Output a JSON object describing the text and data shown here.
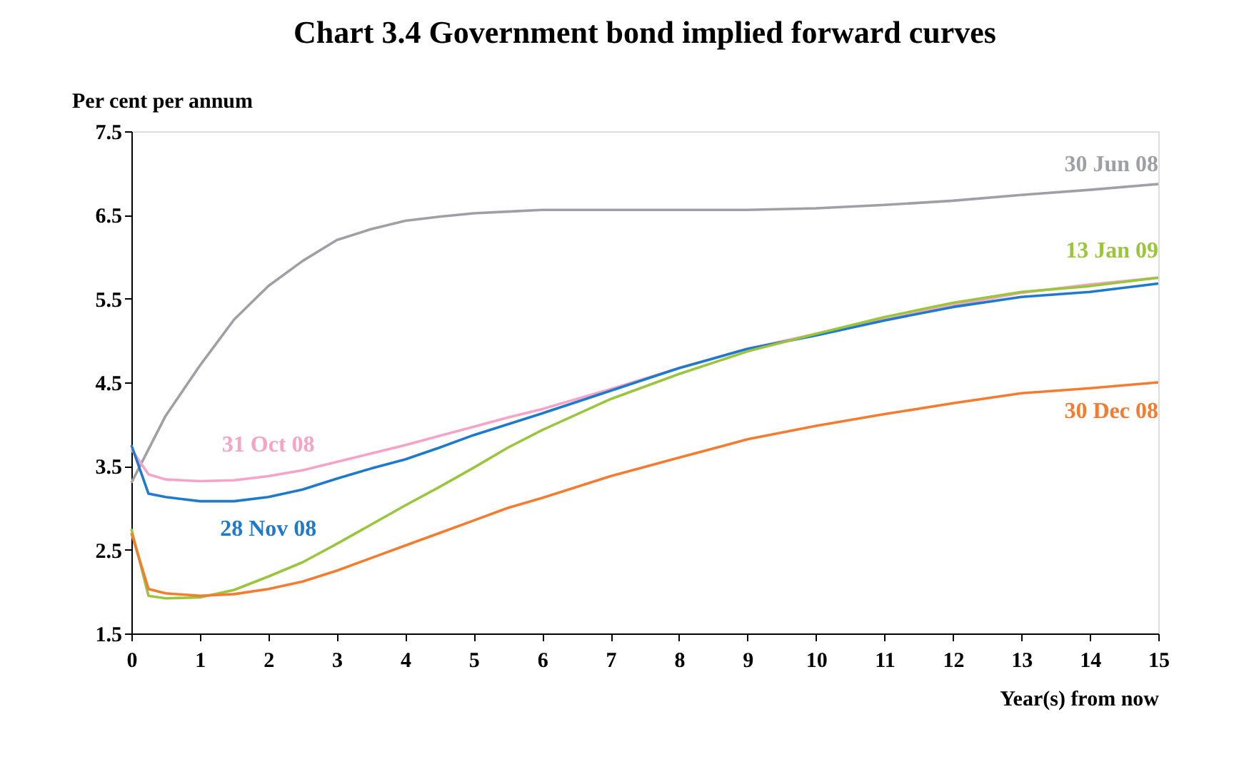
{
  "chart_data": {
    "type": "line",
    "title": "Chart 3.4  Government bond implied forward curves",
    "ylabel": "Per cent per annum",
    "xlabel": "Year(s) from now",
    "x": [
      0,
      0.25,
      0.5,
      1,
      1.5,
      2,
      2.5,
      3,
      3.5,
      4,
      4.5,
      5,
      5.5,
      6,
      7,
      8,
      9,
      10,
      11,
      12,
      13,
      14,
      15
    ],
    "series": [
      {
        "name": "30 Jun 08",
        "color": "#9ea0a6",
        "values": [
          3.3,
          3.7,
          4.1,
          4.7,
          5.25,
          5.65,
          5.95,
          6.2,
          6.33,
          6.43,
          6.48,
          6.52,
          6.54,
          6.56,
          6.56,
          6.56,
          6.56,
          6.58,
          6.62,
          6.67,
          6.74,
          6.8,
          6.87
        ]
      },
      {
        "name": "31 Oct 08",
        "color": "#f5a3c7",
        "values": [
          3.7,
          3.4,
          3.34,
          3.32,
          3.33,
          3.38,
          3.45,
          3.55,
          3.65,
          3.75,
          3.86,
          3.97,
          4.08,
          4.18,
          4.42,
          4.67,
          4.9,
          5.08,
          5.25,
          5.42,
          5.57,
          5.67,
          5.75
        ]
      },
      {
        "name": "28 Nov 08",
        "color": "#1f7acb",
        "values": [
          3.75,
          3.17,
          3.13,
          3.08,
          3.08,
          3.13,
          3.22,
          3.35,
          3.47,
          3.58,
          3.72,
          3.87,
          4.0,
          4.13,
          4.4,
          4.67,
          4.9,
          5.06,
          5.24,
          5.4,
          5.52,
          5.58,
          5.68
        ]
      },
      {
        "name": "13 Jan 09",
        "color": "#9bc53d",
        "values": [
          2.75,
          1.95,
          1.92,
          1.93,
          2.02,
          2.18,
          2.35,
          2.57,
          2.8,
          3.03,
          3.25,
          3.48,
          3.72,
          3.93,
          4.3,
          4.6,
          4.87,
          5.08,
          5.28,
          5.45,
          5.58,
          5.65,
          5.75
        ]
      },
      {
        "name": "30 Dec 08",
        "color": "#f47c30",
        "values": [
          2.7,
          2.03,
          1.98,
          1.95,
          1.97,
          2.03,
          2.12,
          2.25,
          2.4,
          2.55,
          2.7,
          2.85,
          3.0,
          3.12,
          3.38,
          3.6,
          3.82,
          3.98,
          4.12,
          4.25,
          4.37,
          4.43,
          4.5
        ]
      }
    ],
    "xlim": [
      0,
      15
    ],
    "xticks": [
      0,
      1,
      2,
      3,
      4,
      5,
      6,
      7,
      8,
      9,
      10,
      11,
      12,
      13,
      14,
      15
    ],
    "ylim": [
      1.5,
      7.5
    ],
    "yticks": [
      1.5,
      2.5,
      3.5,
      4.5,
      5.5,
      6.5,
      7.5
    ],
    "grid": false,
    "legend": false,
    "marker": "none",
    "line_style": "solid"
  }
}
